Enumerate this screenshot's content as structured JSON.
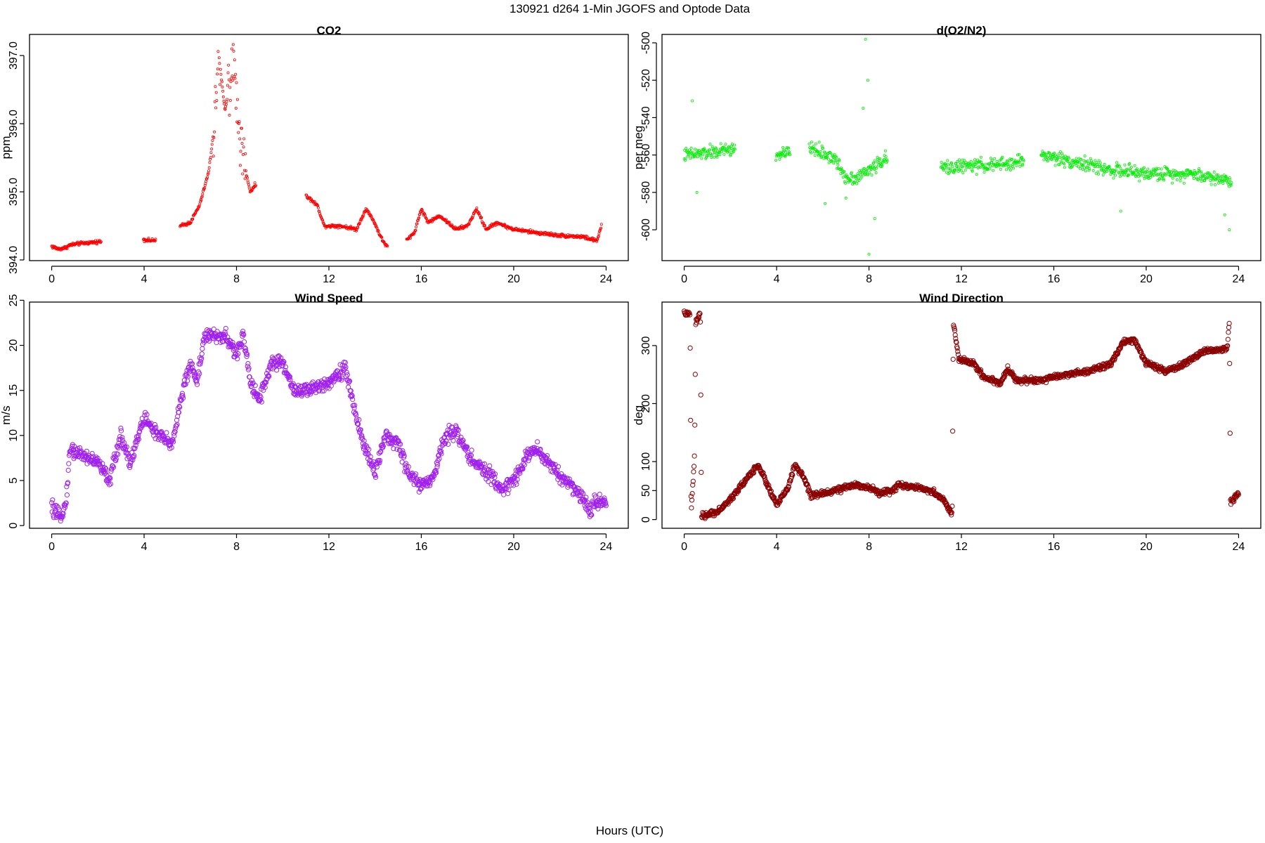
{
  "figure": {
    "title": "130921   d264   1-Min  JGOFS and Optode Data",
    "xlabel": "Hours (UTC)"
  },
  "chart_data": [
    {
      "id": "co2",
      "type": "scatter",
      "title": "CO2",
      "xlabel": "",
      "ylabel": "ppm",
      "color": "#ff0000",
      "marker_size": "small",
      "xlim": [
        -0.96,
        24.96
      ],
      "ylim": [
        393.99,
        397.31
      ],
      "xticks": [
        0,
        4,
        8,
        12,
        16,
        20,
        24
      ],
      "yticks": [
        394.0,
        395.0,
        396.0,
        397.0
      ],
      "ytick_labels": [
        "394.0",
        "395.0",
        "396.0",
        "397.0"
      ],
      "knots": [
        [
          0.0,
          394.2
        ],
        [
          0.3,
          394.16
        ],
        [
          0.6,
          394.18
        ],
        [
          0.8,
          394.22
        ],
        [
          1.2,
          394.24
        ],
        [
          2.1,
          394.27
        ],
        [
          4.0,
          394.3
        ],
        [
          4.4,
          394.28
        ],
        [
          5.6,
          394.5
        ],
        [
          6.0,
          394.55
        ],
        [
          6.4,
          394.8
        ],
        [
          6.8,
          395.3
        ],
        [
          7.05,
          396.0
        ],
        [
          7.2,
          397.1
        ],
        [
          7.5,
          396.2
        ],
        [
          7.9,
          396.9
        ],
        [
          8.2,
          395.6
        ],
        [
          8.6,
          395.0
        ],
        [
          8.8,
          395.1
        ],
        [
          11.0,
          394.95
        ],
        [
          11.5,
          394.8
        ],
        [
          11.8,
          394.5
        ],
        [
          12.5,
          394.5
        ],
        [
          13.2,
          394.45
        ],
        [
          13.6,
          394.75
        ],
        [
          13.9,
          394.6
        ],
        [
          14.3,
          394.3
        ],
        [
          14.5,
          394.2
        ],
        [
          15.4,
          394.3
        ],
        [
          15.7,
          394.4
        ],
        [
          16.0,
          394.75
        ],
        [
          16.3,
          394.55
        ],
        [
          16.8,
          394.65
        ],
        [
          17.5,
          394.45
        ],
        [
          18.0,
          394.5
        ],
        [
          18.4,
          394.75
        ],
        [
          18.8,
          394.45
        ],
        [
          19.3,
          394.55
        ],
        [
          19.6,
          394.5
        ],
        [
          20.0,
          394.45
        ],
        [
          21.0,
          394.4
        ],
        [
          22.0,
          394.36
        ],
        [
          23.0,
          394.34
        ],
        [
          23.6,
          394.28
        ],
        [
          23.8,
          394.5
        ]
      ],
      "gaps": [
        [
          2.15,
          3.95
        ],
        [
          4.5,
          5.55
        ],
        [
          8.85,
          11.0
        ],
        [
          14.55,
          15.35
        ]
      ],
      "noise": 0.03,
      "spikes": [
        [
          7.0,
          7.3,
          0.35
        ],
        [
          7.6,
          8.4,
          0.4
        ]
      ],
      "n_points": 1180
    },
    {
      "id": "o2n2",
      "type": "scatter",
      "title": "d(O2/N2)",
      "xlabel": "",
      "ylabel": "per meg",
      "color": "#00ee00",
      "marker_size": "small",
      "xlim": [
        -0.96,
        24.96
      ],
      "ylim": [
        -616.5,
        -495.5
      ],
      "xticks": [
        0,
        4,
        8,
        12,
        16,
        20,
        24
      ],
      "yticks": [
        -600,
        -580,
        -560,
        -540,
        -520,
        -500
      ],
      "ytick_labels": [
        "-600",
        "-580",
        "-560",
        "-540",
        "-520",
        "-500"
      ],
      "knots": [
        [
          0.0,
          -560
        ],
        [
          1.0,
          -559
        ],
        [
          2.0,
          -557
        ],
        [
          4.0,
          -560
        ],
        [
          4.5,
          -559
        ],
        [
          5.5,
          -556
        ],
        [
          6.5,
          -562
        ],
        [
          7.0,
          -572
        ],
        [
          7.5,
          -572
        ],
        [
          8.0,
          -568
        ],
        [
          8.7,
          -562
        ],
        [
          11.1,
          -567
        ],
        [
          12.0,
          -566
        ],
        [
          14.0,
          -565
        ],
        [
          14.6,
          -563
        ],
        [
          15.5,
          -560
        ],
        [
          17.0,
          -564
        ],
        [
          18.5,
          -568
        ],
        [
          20.0,
          -570
        ],
        [
          22.0,
          -570
        ],
        [
          23.7,
          -574
        ]
      ],
      "gaps": [
        [
          2.2,
          3.95
        ],
        [
          4.6,
          5.4
        ],
        [
          8.8,
          11.1
        ],
        [
          14.7,
          15.45
        ]
      ],
      "noise": 4.5,
      "spikes": [],
      "n_points": 1180,
      "outliers": [
        [
          0.35,
          -531
        ],
        [
          0.55,
          -580
        ],
        [
          7.85,
          -498
        ],
        [
          7.95,
          -520
        ],
        [
          8.0,
          -613
        ],
        [
          8.25,
          -594
        ],
        [
          7.75,
          -535
        ],
        [
          23.4,
          -592
        ],
        [
          23.6,
          -600
        ],
        [
          7.0,
          -583
        ],
        [
          6.1,
          -586
        ],
        [
          18.9,
          -590
        ]
      ]
    },
    {
      "id": "wind_speed",
      "type": "scatter",
      "title": "Wind Speed",
      "xlabel": "",
      "ylabel": "m/s",
      "color": "#a020f0",
      "marker_size": "large",
      "xlim": [
        -0.96,
        24.96
      ],
      "ylim": [
        -0.3,
        24.8
      ],
      "xticks": [
        0,
        4,
        8,
        12,
        16,
        20,
        24
      ],
      "yticks": [
        0,
        5,
        10,
        15,
        20,
        25
      ],
      "ytick_labels": [
        "0",
        "5",
        "10",
        "15",
        "20",
        "25"
      ],
      "knots": [
        [
          0.0,
          2.0
        ],
        [
          0.3,
          0.9
        ],
        [
          0.6,
          2.2
        ],
        [
          0.8,
          8.5
        ],
        [
          1.2,
          8.0
        ],
        [
          2.0,
          7.0
        ],
        [
          2.5,
          5.0
        ],
        [
          3.0,
          10.0
        ],
        [
          3.4,
          7.0
        ],
        [
          4.0,
          12.0
        ],
        [
          4.6,
          10.0
        ],
        [
          5.2,
          9.0
        ],
        [
          5.6,
          14.0
        ],
        [
          6.0,
          18.0
        ],
        [
          6.3,
          16.0
        ],
        [
          6.6,
          21.0
        ],
        [
          7.5,
          21.0
        ],
        [
          8.0,
          19.0
        ],
        [
          8.3,
          21.0
        ],
        [
          8.6,
          16.0
        ],
        [
          9.0,
          14.0
        ],
        [
          9.5,
          18.0
        ],
        [
          10.0,
          18.0
        ],
        [
          10.5,
          15.0
        ],
        [
          11.2,
          15.0
        ],
        [
          12.0,
          16.0
        ],
        [
          12.7,
          17.5
        ],
        [
          13.0,
          14.0
        ],
        [
          13.5,
          9.0
        ],
        [
          14.0,
          6.0
        ],
        [
          14.5,
          10.0
        ],
        [
          15.0,
          9.0
        ],
        [
          15.5,
          5.5
        ],
        [
          16.0,
          4.5
        ],
        [
          16.5,
          5.0
        ],
        [
          17.0,
          10.0
        ],
        [
          17.5,
          10.5
        ],
        [
          18.0,
          8.0
        ],
        [
          18.5,
          6.5
        ],
        [
          19.0,
          5.5
        ],
        [
          19.5,
          4.0
        ],
        [
          20.0,
          5.0
        ],
        [
          20.5,
          7.5
        ],
        [
          21.0,
          8.5
        ],
        [
          21.5,
          7.0
        ],
        [
          22.0,
          5.5
        ],
        [
          22.5,
          4.5
        ],
        [
          23.0,
          3.0
        ],
        [
          23.3,
          1.5
        ],
        [
          23.5,
          2.5
        ],
        [
          24.0,
          2.7
        ]
      ],
      "gaps": [],
      "noise": 1.0,
      "spikes": [],
      "n_points": 1300
    },
    {
      "id": "wind_direction",
      "type": "scatter",
      "title": "Wind Direction",
      "xlabel": "",
      "ylabel": "deg",
      "color": "#8b0000",
      "marker_size": "large",
      "xlim": [
        -0.96,
        24.96
      ],
      "ylim": [
        -15,
        375
      ],
      "xticks": [
        0,
        4,
        8,
        12,
        16,
        20,
        24
      ],
      "yticks": [
        0,
        50,
        100,
        200,
        300
      ],
      "ytick_labels": [
        "0",
        "50",
        "100",
        "200",
        "300"
      ],
      "knots": [
        [
          0.0,
          355
        ],
        [
          0.25,
          355
        ],
        [
          0.3,
          10
        ],
        [
          0.45,
          110
        ],
        [
          0.5,
          340
        ],
        [
          0.7,
          355
        ],
        [
          0.75,
          5
        ],
        [
          1.5,
          15
        ],
        [
          2.0,
          35
        ],
        [
          2.5,
          60
        ],
        [
          2.8,
          75
        ],
        [
          3.2,
          95
        ],
        [
          3.6,
          60
        ],
        [
          4.0,
          25
        ],
        [
          4.5,
          55
        ],
        [
          4.8,
          95
        ],
        [
          5.2,
          70
        ],
        [
          5.5,
          40
        ],
        [
          6.5,
          50
        ],
        [
          7.5,
          60
        ],
        [
          8.0,
          55
        ],
        [
          8.5,
          45
        ],
        [
          9.0,
          50
        ],
        [
          9.3,
          60
        ],
        [
          10.0,
          55
        ],
        [
          10.8,
          48
        ],
        [
          11.3,
          30
        ],
        [
          11.6,
          8
        ],
        [
          11.65,
          340
        ],
        [
          11.9,
          275
        ],
        [
          12.5,
          270
        ],
        [
          13.0,
          245
        ],
        [
          13.7,
          235
        ],
        [
          14.0,
          260
        ],
        [
          14.4,
          240
        ],
        [
          15.5,
          240
        ],
        [
          16.5,
          250
        ],
        [
          17.5,
          255
        ],
        [
          18.5,
          270
        ],
        [
          19.0,
          305
        ],
        [
          19.5,
          310
        ],
        [
          20.0,
          270
        ],
        [
          20.8,
          255
        ],
        [
          21.5,
          265
        ],
        [
          22.5,
          290
        ],
        [
          23.5,
          295
        ],
        [
          23.6,
          340
        ],
        [
          23.65,
          30
        ],
        [
          24.0,
          45
        ]
      ],
      "gaps": [
        [
          0.9,
          0.9
        ]
      ],
      "noise": 6.0,
      "spikes": [],
      "n_points": 1300
    }
  ]
}
